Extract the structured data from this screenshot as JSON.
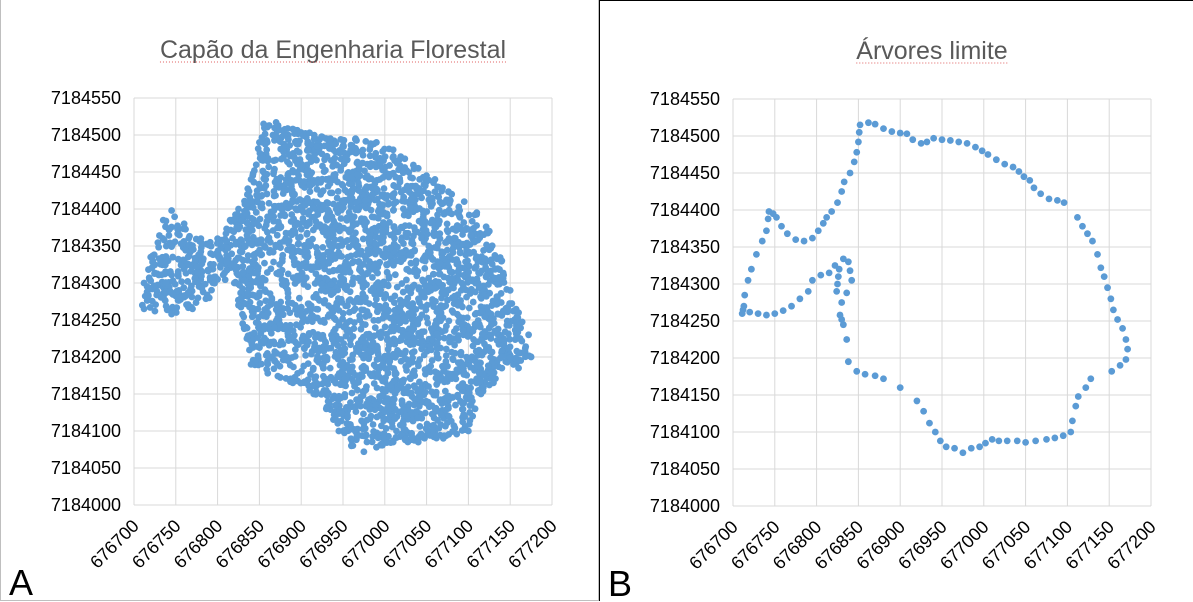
{
  "colors": {
    "marker": "#5b9bd5",
    "grid": "#d9d9d9",
    "title": "#595959"
  },
  "chart_data": [
    {
      "type": "scatter",
      "panel_letter": "A",
      "title": "Capão da Engenharia Florestal",
      "xlim": [
        676700,
        677200
      ],
      "ylim": [
        7184000,
        7184550
      ],
      "x_ticks": [
        676700,
        676750,
        676800,
        676850,
        676900,
        676950,
        677000,
        677050,
        677100,
        677150,
        677200
      ],
      "y_ticks": [
        7184000,
        7184050,
        7184100,
        7184150,
        7184200,
        7184250,
        7184300,
        7184350,
        7184400,
        7184450,
        7184500,
        7184550
      ],
      "x_tick_labels": [
        "676700",
        "676750",
        "676800",
        "676850",
        "676900",
        "676950",
        "677000",
        "677050",
        "677100",
        "677150",
        "677200"
      ],
      "y_tick_labels": [
        "7184000",
        "7184050",
        "7184100",
        "7184150",
        "7184200",
        "7184250",
        "7184300",
        "7184350",
        "7184400",
        "7184450",
        "7184500",
        "7184550"
      ],
      "grid": true,
      "region_outline": [
        [
          676710,
          7184270
        ],
        [
          676712,
          7184300
        ],
        [
          676720,
          7184335
        ],
        [
          676735,
          7184385
        ],
        [
          676745,
          7184398
        ],
        [
          676760,
          7184380
        ],
        [
          676780,
          7184360
        ],
        [
          676800,
          7184360
        ],
        [
          676815,
          7184385
        ],
        [
          676825,
          7184400
        ],
        [
          676840,
          7184440
        ],
        [
          676850,
          7184490
        ],
        [
          676855,
          7184515
        ],
        [
          676870,
          7184517
        ],
        [
          676890,
          7184508
        ],
        [
          676910,
          7184503
        ],
        [
          676935,
          7184495
        ],
        [
          676965,
          7184495
        ],
        [
          676990,
          7184490
        ],
        [
          677010,
          7184480
        ],
        [
          677040,
          7184455
        ],
        [
          677060,
          7184440
        ],
        [
          677080,
          7184420
        ],
        [
          677095,
          7184410
        ],
        [
          677110,
          7184395
        ],
        [
          677125,
          7184370
        ],
        [
          677140,
          7184330
        ],
        [
          677150,
          7184290
        ],
        [
          677160,
          7184260
        ],
        [
          677172,
          7184230
        ],
        [
          677175,
          7184200
        ],
        [
          677160,
          7184185
        ],
        [
          677140,
          7184185
        ],
        [
          677130,
          7184165
        ],
        [
          677115,
          7184150
        ],
        [
          677108,
          7184130
        ],
        [
          677100,
          7184100
        ],
        [
          677070,
          7184090
        ],
        [
          677040,
          7184085
        ],
        [
          677010,
          7184085
        ],
        [
          676990,
          7184078
        ],
        [
          676975,
          7184072
        ],
        [
          676960,
          7184080
        ],
        [
          676945,
          7184100
        ],
        [
          676930,
          7184130
        ],
        [
          676915,
          7184150
        ],
        [
          676890,
          7184165
        ],
        [
          676860,
          7184178
        ],
        [
          676840,
          7184190
        ],
        [
          676835,
          7184225
        ],
        [
          676830,
          7184245
        ],
        [
          676825,
          7184270
        ],
        [
          676820,
          7184300
        ],
        [
          676800,
          7184305
        ],
        [
          676790,
          7184280
        ],
        [
          676770,
          7184265
        ],
        [
          676745,
          7184258
        ],
        [
          676725,
          7184262
        ],
        [
          676712,
          7184265
        ]
      ]
    },
    {
      "type": "scatter",
      "panel_letter": "B",
      "title": "Árvores limite",
      "xlim": [
        676700,
        677200
      ],
      "ylim": [
        7184000,
        7184550
      ],
      "x_ticks": [
        676700,
        676750,
        676800,
        676850,
        676900,
        676950,
        677000,
        677050,
        677100,
        677150,
        677200
      ],
      "y_ticks": [
        7184000,
        7184050,
        7184100,
        7184150,
        7184200,
        7184250,
        7184300,
        7184350,
        7184400,
        7184450,
        7184500,
        7184550
      ],
      "x_tick_labels": [
        "676700",
        "676750",
        "676800",
        "676850",
        "676900",
        "676950",
        "677000",
        "677050",
        "677100",
        "677150",
        "677200"
      ],
      "y_tick_labels": [
        "7184000",
        "7184050",
        "7184100",
        "7184150",
        "7184200",
        "7184250",
        "7184300",
        "7184350",
        "7184400",
        "7184450",
        "7184500",
        "7184550"
      ],
      "grid": true,
      "points": [
        [
          676713,
          7184270
        ],
        [
          676714,
          7184285
        ],
        [
          676718,
          7184305
        ],
        [
          676722,
          7184320
        ],
        [
          676728,
          7184340
        ],
        [
          676735,
          7184358
        ],
        [
          676740,
          7184372
        ],
        [
          676742,
          7184388
        ],
        [
          676743,
          7184398
        ],
        [
          676748,
          7184395
        ],
        [
          676752,
          7184390
        ],
        [
          676758,
          7184378
        ],
        [
          676765,
          7184368
        ],
        [
          676775,
          7184360
        ],
        [
          676785,
          7184358
        ],
        [
          676795,
          7184362
        ],
        [
          676802,
          7184372
        ],
        [
          676808,
          7184382
        ],
        [
          676812,
          7184390
        ],
        [
          676818,
          7184398
        ],
        [
          676825,
          7184410
        ],
        [
          676830,
          7184425
        ],
        [
          676833,
          7184438
        ],
        [
          676840,
          7184450
        ],
        [
          676845,
          7184465
        ],
        [
          676848,
          7184478
        ],
        [
          676850,
          7184492
        ],
        [
          676851,
          7184505
        ],
        [
          676852,
          7184515
        ],
        [
          676862,
          7184518
        ],
        [
          676870,
          7184516
        ],
        [
          676880,
          7184510
        ],
        [
          676890,
          7184506
        ],
        [
          676900,
          7184504
        ],
        [
          676908,
          7184503
        ],
        [
          676915,
          7184495
        ],
        [
          676925,
          7184490
        ],
        [
          676932,
          7184492
        ],
        [
          676940,
          7184497
        ],
        [
          676950,
          7184495
        ],
        [
          676960,
          7184494
        ],
        [
          676970,
          7184492
        ],
        [
          676980,
          7184490
        ],
        [
          676990,
          7184485
        ],
        [
          676998,
          7184480
        ],
        [
          677005,
          7184475
        ],
        [
          677015,
          7184468
        ],
        [
          677025,
          7184462
        ],
        [
          677035,
          7184458
        ],
        [
          677042,
          7184452
        ],
        [
          677048,
          7184445
        ],
        [
          677055,
          7184440
        ],
        [
          677060,
          7184430
        ],
        [
          677068,
          7184422
        ],
        [
          677078,
          7184415
        ],
        [
          677088,
          7184413
        ],
        [
          677096,
          7184410
        ],
        [
          677112,
          7184390
        ],
        [
          677118,
          7184378
        ],
        [
          677124,
          7184368
        ],
        [
          677130,
          7184358
        ],
        [
          677136,
          7184340
        ],
        [
          677140,
          7184322
        ],
        [
          677144,
          7184310
        ],
        [
          677148,
          7184295
        ],
        [
          677152,
          7184280
        ],
        [
          677155,
          7184265
        ],
        [
          677160,
          7184252
        ],
        [
          677166,
          7184240
        ],
        [
          677170,
          7184225
        ],
        [
          677172,
          7184212
        ],
        [
          677170,
          7184198
        ],
        [
          677163,
          7184190
        ],
        [
          677153,
          7184182
        ],
        [
          677128,
          7184172
        ],
        [
          677122,
          7184160
        ],
        [
          677113,
          7184148
        ],
        [
          677110,
          7184135
        ],
        [
          677106,
          7184115
        ],
        [
          677104,
          7184100
        ],
        [
          677095,
          7184095
        ],
        [
          677085,
          7184092
        ],
        [
          677075,
          7184090
        ],
        [
          677062,
          7184088
        ],
        [
          677050,
          7184086
        ],
        [
          677040,
          7184088
        ],
        [
          677028,
          7184088
        ],
        [
          677018,
          7184088
        ],
        [
          677010,
          7184090
        ],
        [
          677002,
          7184085
        ],
        [
          676995,
          7184080
        ],
        [
          676985,
          7184078
        ],
        [
          676975,
          7184072
        ],
        [
          676965,
          7184078
        ],
        [
          676955,
          7184080
        ],
        [
          676948,
          7184088
        ],
        [
          676942,
          7184100
        ],
        [
          676935,
          7184112
        ],
        [
          676928,
          7184128
        ],
        [
          676920,
          7184142
        ],
        [
          676900,
          7184160
        ],
        [
          676880,
          7184172
        ],
        [
          676870,
          7184176
        ],
        [
          676858,
          7184178
        ],
        [
          676848,
          7184182
        ],
        [
          676838,
          7184195
        ],
        [
          676836,
          7184225
        ],
        [
          676832,
          7184245
        ],
        [
          676828,
          7184258
        ],
        [
          676830,
          7184275
        ],
        [
          676836,
          7184288
        ],
        [
          676842,
          7184305
        ],
        [
          676840,
          7184318
        ],
        [
          676838,
          7184330
        ],
        [
          676832,
          7184334
        ],
        [
          676822,
          7184325
        ],
        [
          676815,
          7184315
        ],
        [
          676805,
          7184312
        ],
        [
          676795,
          7184305
        ],
        [
          676790,
          7184290
        ],
        [
          676780,
          7184280
        ],
        [
          676770,
          7184270
        ],
        [
          676760,
          7184264
        ],
        [
          676750,
          7184260
        ],
        [
          676740,
          7184258
        ],
        [
          676730,
          7184260
        ],
        [
          676720,
          7184262
        ],
        [
          676712,
          7184265
        ],
        [
          676711,
          7184260
        ],
        [
          676825,
          7184300
        ],
        [
          676826,
          7184310
        ],
        [
          676827,
          7184320
        ],
        [
          676824,
          7184290
        ],
        [
          676830,
          7184252
        ]
      ]
    }
  ]
}
